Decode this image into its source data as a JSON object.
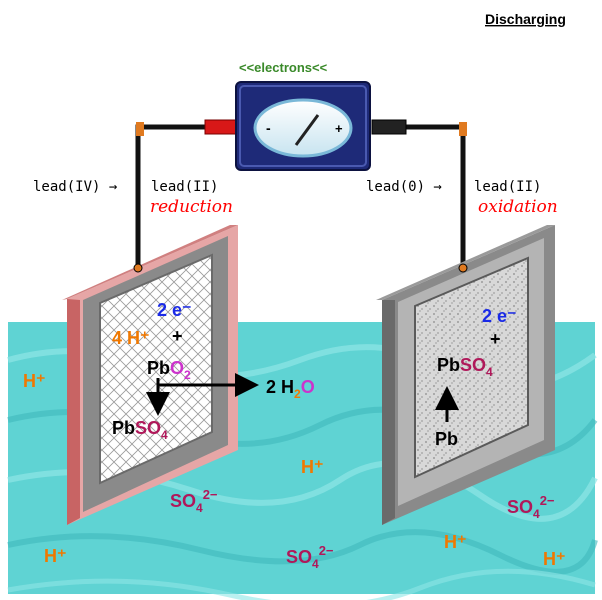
{
  "header": {
    "mode_label": "Discharging"
  },
  "meter": {
    "title": "<<electrons<<",
    "minus": "-",
    "plus": "+"
  },
  "left_electrode": {
    "state_from": "lead(IV) →",
    "state_to": "lead(II)",
    "process": "reduction",
    "electrons": "2 e⁻",
    "protons": "4 H⁺",
    "plus_sign": "+",
    "reactant_pb": "Pb",
    "reactant_o2": "O",
    "reactant_o2_sub": "2",
    "product_water": "2 H",
    "product_water_sub": "2",
    "product_water_o": "O",
    "product_pb": "Pb",
    "product_so4": "SO",
    "product_so4_sub": "4"
  },
  "right_electrode": {
    "state_from": "lead(0) →",
    "state_to": "lead(II)",
    "process": "oxidation",
    "electrons": "2 e⁻",
    "plus_sign": "+",
    "product_pb": "Pb",
    "product_so4": "SO",
    "product_so4_sub": "4",
    "reactant": "Pb"
  },
  "solution_ions": {
    "h_plus": "H⁺",
    "sulfate": "SO",
    "sulfate_sub": "4",
    "sulfate_charge": "2−"
  },
  "colors": {
    "solution": "#5fd3d3",
    "wire": "#111111",
    "left_frame": "#c86464",
    "right_frame": "#8a8a8a",
    "meter_body": "#1e2a78",
    "h_ion": "#f07800",
    "so4_ion": "#b0185a",
    "oxygen": "#cc33cc",
    "electron": "#1a2ae6",
    "label_red": "#ff0000",
    "title_green": "#3a8a2a"
  }
}
